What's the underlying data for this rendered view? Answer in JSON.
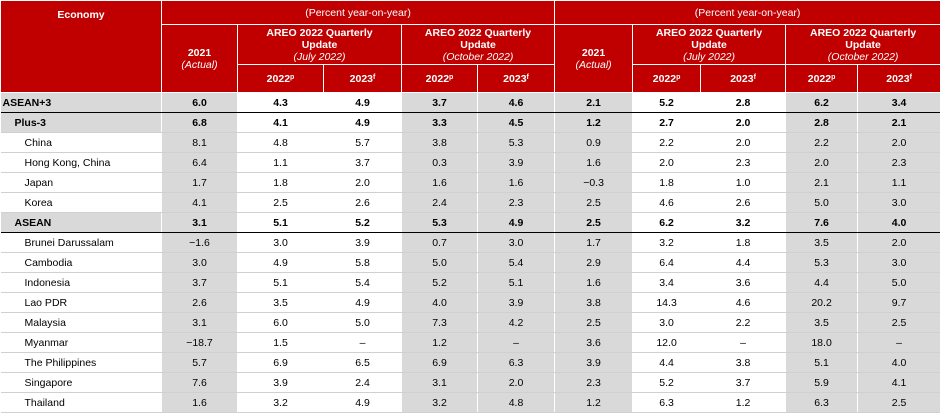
{
  "header": {
    "economy": "Economy",
    "percent_left": "(Percent year-on-year)",
    "percent_right": "(Percent year-on-year)",
    "y2021": "2021",
    "actual": "(Actual)",
    "areo_title_1": "AREO 2022 Quarterly",
    "areo_title_2": "Update",
    "july": "(July 2022)",
    "october": "(October 2022)",
    "y2022": "2022",
    "y2022_sup": "p",
    "y2023": "2023",
    "y2023_sup": "f"
  },
  "rows": [
    {
      "name": "ASEAN+3",
      "kind": "top",
      "vals": [
        "6.0",
        "4.3",
        "4.9",
        "3.7",
        "4.6",
        "2.1",
        "5.2",
        "2.8",
        "6.2",
        "3.4"
      ]
    },
    {
      "name": "Plus-3",
      "kind": "group",
      "vals": [
        "6.8",
        "4.1",
        "4.9",
        "3.3",
        "4.5",
        "1.2",
        "2.7",
        "2.0",
        "2.8",
        "2.1"
      ]
    },
    {
      "name": "China",
      "kind": "item",
      "vals": [
        "8.1",
        "4.8",
        "5.7",
        "3.8",
        "5.3",
        "0.9",
        "2.2",
        "2.0",
        "2.2",
        "2.0"
      ]
    },
    {
      "name": "Hong Kong, China",
      "kind": "item",
      "vals": [
        "6.4",
        "1.1",
        "3.7",
        "0.3",
        "3.9",
        "1.6",
        "2.0",
        "2.3",
        "2.0",
        "2.3"
      ]
    },
    {
      "name": "Japan",
      "kind": "item",
      "vals": [
        "1.7",
        "1.8",
        "2.0",
        "1.6",
        "1.6",
        "−0.3",
        "1.8",
        "1.0",
        "2.1",
        "1.1"
      ]
    },
    {
      "name": "Korea",
      "kind": "item",
      "vals": [
        "4.1",
        "2.5",
        "2.6",
        "2.4",
        "2.3",
        "2.5",
        "4.6",
        "2.6",
        "5.0",
        "3.0"
      ]
    },
    {
      "name": "ASEAN",
      "kind": "group2",
      "vals": [
        "3.1",
        "5.1",
        "5.2",
        "5.3",
        "4.9",
        "2.5",
        "6.2",
        "3.2",
        "7.6",
        "4.0"
      ]
    },
    {
      "name": "Brunei Darussalam",
      "kind": "item",
      "vals": [
        "−1.6",
        "3.0",
        "3.9",
        "0.7",
        "3.0",
        "1.7",
        "3.2",
        "1.8",
        "3.5",
        "2.0"
      ]
    },
    {
      "name": "Cambodia",
      "kind": "item",
      "vals": [
        "3.0",
        "4.9",
        "5.8",
        "5.0",
        "5.4",
        "2.9",
        "6.4",
        "4.4",
        "5.3",
        "3.0"
      ]
    },
    {
      "name": "Indonesia",
      "kind": "item",
      "vals": [
        "3.7",
        "5.1",
        "5.4",
        "5.2",
        "5.1",
        "1.6",
        "3.4",
        "3.6",
        "4.4",
        "5.0"
      ]
    },
    {
      "name": "Lao PDR",
      "kind": "item",
      "vals": [
        "2.6",
        "3.5",
        "4.9",
        "4.0",
        "3.9",
        "3.8",
        "14.3",
        "4.6",
        "20.2",
        "9.7"
      ]
    },
    {
      "name": "Malaysia",
      "kind": "item",
      "vals": [
        "3.1",
        "6.0",
        "5.0",
        "7.3",
        "4.2",
        "2.5",
        "3.0",
        "2.2",
        "3.5",
        "2.5"
      ]
    },
    {
      "name": "Myanmar",
      "kind": "item",
      "vals": [
        "−18.7",
        "1.5",
        "–",
        "1.2",
        "–",
        "3.6",
        "12.0",
        "–",
        "18.0",
        "–"
      ]
    },
    {
      "name": "The Philippines",
      "kind": "item",
      "vals": [
        "5.7",
        "6.9",
        "6.5",
        "6.9",
        "6.3",
        "3.9",
        "4.4",
        "3.8",
        "5.1",
        "4.0"
      ]
    },
    {
      "name": "Singapore",
      "kind": "item",
      "vals": [
        "7.6",
        "3.9",
        "2.4",
        "3.1",
        "2.0",
        "2.3",
        "5.2",
        "3.7",
        "5.9",
        "4.1"
      ]
    },
    {
      "name": "Thailand",
      "kind": "item",
      "vals": [
        "1.6",
        "3.2",
        "4.9",
        "3.2",
        "4.8",
        "1.2",
        "6.3",
        "1.2",
        "6.3",
        "2.5"
      ]
    }
  ]
}
